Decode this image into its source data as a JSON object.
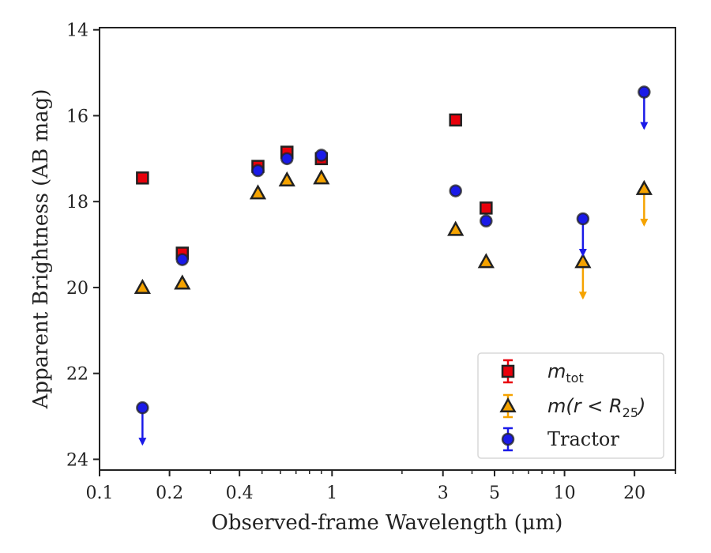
{
  "chart_data": {
    "type": "scatter",
    "xlabel": "Observed-frame Wavelength (μm)",
    "ylabel": "Apparent Brightness (AB mag)",
    "xscale": "log",
    "xlim": [
      0.1,
      30
    ],
    "ylim": [
      24.25,
      13.95
    ],
    "y_inverted": true,
    "xticks": [
      0.1,
      0.2,
      0.4,
      1,
      3,
      5,
      10,
      20
    ],
    "xtick_labels": [
      "0.1",
      "0.2",
      "0.4",
      "1",
      "3",
      "5",
      "10",
      "20"
    ],
    "yticks": [
      14,
      16,
      18,
      20,
      22,
      24
    ],
    "ytick_labels": [
      "14",
      "16",
      "18",
      "20",
      "22",
      "24"
    ],
    "grid": false,
    "legend_position": "bottom-right",
    "series": [
      {
        "name": "m_tot",
        "legend_main": "m",
        "legend_sub": "tot",
        "marker": "square",
        "color": "#e8000b",
        "points": [
          {
            "x": 0.153,
            "y": 17.45
          },
          {
            "x": 0.227,
            "y": 19.2
          },
          {
            "x": 0.48,
            "y": 17.18
          },
          {
            "x": 0.64,
            "y": 16.85
          },
          {
            "x": 0.9,
            "y": 17.0
          },
          {
            "x": 3.4,
            "y": 16.1
          },
          {
            "x": 4.6,
            "y": 18.15
          }
        ]
      },
      {
        "name": "m(r < R25)",
        "legend_main": "m(r < R",
        "legend_sub": "25",
        "legend_tail": ")",
        "marker": "triangle",
        "color": "#f5a300",
        "points": [
          {
            "x": 0.153,
            "y": 20.0
          },
          {
            "x": 0.227,
            "y": 19.9
          },
          {
            "x": 0.48,
            "y": 17.8
          },
          {
            "x": 0.64,
            "y": 17.5
          },
          {
            "x": 0.9,
            "y": 17.45
          },
          {
            "x": 3.4,
            "y": 18.65
          },
          {
            "x": 4.6,
            "y": 19.4
          },
          {
            "x": 12.0,
            "y": 19.4,
            "upper_limit": true
          },
          {
            "x": 22.0,
            "y": 17.7,
            "upper_limit": true
          }
        ]
      },
      {
        "name": "Tractor",
        "marker": "circle",
        "color": "#1a1ae8",
        "points": [
          {
            "x": 0.153,
            "y": 22.8,
            "upper_limit": true
          },
          {
            "x": 0.227,
            "y": 19.35
          },
          {
            "x": 0.48,
            "y": 17.28
          },
          {
            "x": 0.64,
            "y": 17.0
          },
          {
            "x": 0.9,
            "y": 16.92
          },
          {
            "x": 3.4,
            "y": 17.75
          },
          {
            "x": 4.6,
            "y": 18.45
          },
          {
            "x": 12.0,
            "y": 18.4,
            "upper_limit": true
          },
          {
            "x": 22.0,
            "y": 15.45,
            "upper_limit": true
          }
        ]
      }
    ]
  }
}
